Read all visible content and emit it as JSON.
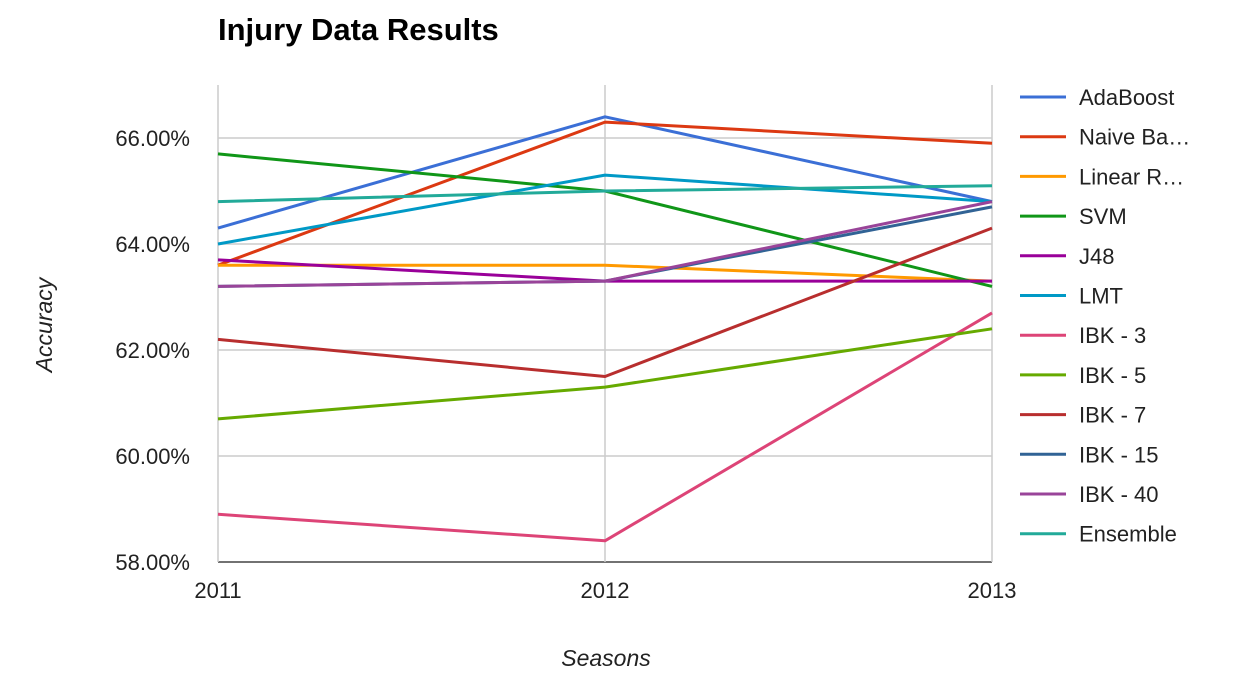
{
  "chart_data": {
    "type": "line",
    "title": "Injury Data Results",
    "xlabel": "Seasons",
    "ylabel": "Accuracy",
    "categories": [
      "2011",
      "2012",
      "2013"
    ],
    "ylim": [
      0.58,
      0.67
    ],
    "yticks": [
      0.58,
      0.6,
      0.62,
      0.64,
      0.66
    ],
    "ytick_labels": [
      "58.00%",
      "60.00%",
      "62.00%",
      "64.00%",
      "66.00%"
    ],
    "grid": true,
    "legend_position": "right",
    "series": [
      {
        "name": "AdaBoost",
        "legend_label": "AdaBoost",
        "color": "#3b6fd6",
        "values": [
          0.643,
          0.664,
          0.648
        ]
      },
      {
        "name": "Naive Bayes",
        "legend_label": "Naive Ba…",
        "color": "#dc3912",
        "values": [
          0.636,
          0.663,
          0.659
        ]
      },
      {
        "name": "Linear Regression",
        "legend_label": "Linear R…",
        "color": "#ff9900",
        "values": [
          0.636,
          0.636,
          0.633
        ]
      },
      {
        "name": "SVM",
        "legend_label": "SVM",
        "color": "#109618",
        "values": [
          0.657,
          0.65,
          0.632
        ]
      },
      {
        "name": "J48",
        "legend_label": "J48",
        "color": "#990099",
        "values": [
          0.637,
          0.633,
          0.633
        ]
      },
      {
        "name": "LMT",
        "legend_label": "LMT",
        "color": "#0099c6",
        "values": [
          0.64,
          0.653,
          0.648
        ]
      },
      {
        "name": "IBK - 3",
        "legend_label": "IBK - 3",
        "color": "#dd4477",
        "values": [
          0.589,
          0.584,
          0.627
        ]
      },
      {
        "name": "IBK - 5",
        "legend_label": "IBK - 5",
        "color": "#66aa00",
        "values": [
          0.607,
          0.613,
          0.624
        ]
      },
      {
        "name": "IBK - 7",
        "legend_label": "IBK - 7",
        "color": "#b82e2e",
        "values": [
          0.622,
          0.615,
          0.643
        ]
      },
      {
        "name": "IBK - 15",
        "legend_label": "IBK - 15",
        "color": "#316395",
        "values": [
          0.632,
          0.633,
          0.647
        ]
      },
      {
        "name": "IBK - 40",
        "legend_label": "IBK - 40",
        "color": "#994499",
        "values": [
          0.632,
          0.633,
          0.648
        ]
      },
      {
        "name": "Ensemble",
        "legend_label": "Ensemble",
        "color": "#22aa99",
        "values": [
          0.648,
          0.65,
          0.651
        ]
      }
    ]
  }
}
